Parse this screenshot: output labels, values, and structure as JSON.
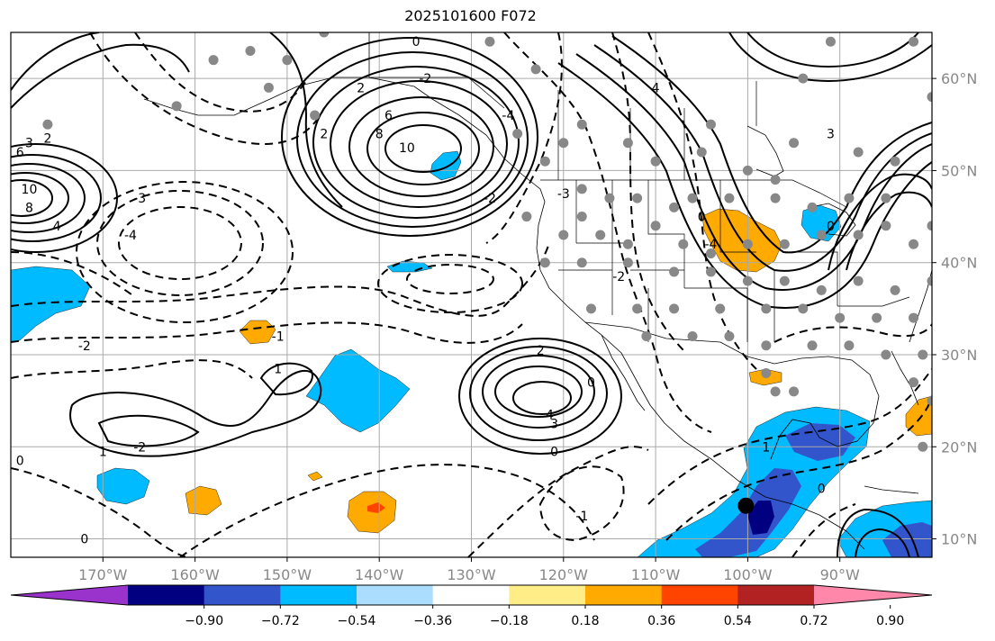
{
  "title": "2025101600 F072",
  "map": {
    "lon_range": [
      -180,
      -80
    ],
    "lat_range": [
      8,
      65
    ],
    "lon_ticks": [
      {
        "lon": -170,
        "label": "170°W"
      },
      {
        "lon": -160,
        "label": "160°W"
      },
      {
        "lon": -150,
        "label": "150°W"
      },
      {
        "lon": -140,
        "label": "140°W"
      },
      {
        "lon": -130,
        "label": "130°W"
      },
      {
        "lon": -120,
        "label": "120°W"
      },
      {
        "lon": -110,
        "label": "110°W"
      },
      {
        "lon": -100,
        "label": "100°W"
      },
      {
        "lon": -90,
        "label": "90°W"
      }
    ],
    "lat_ticks": [
      {
        "lat": 10,
        "label": "10°N"
      },
      {
        "lat": 20,
        "label": "20°N"
      },
      {
        "lat": 30,
        "label": "30°N"
      },
      {
        "lat": 40,
        "label": "40°N"
      },
      {
        "lat": 50,
        "label": "50°N"
      },
      {
        "lat": 60,
        "label": "60°N"
      }
    ],
    "grid": true
  },
  "colorbar": {
    "colors": [
      "#9933cc",
      "#000080",
      "#3355cc",
      "#00bbff",
      "#aaddff",
      "#ffffff",
      "#ffee88",
      "#ffaa00",
      "#ff4400",
      "#b22222",
      "#ff88aa"
    ],
    "labels": [
      "−0.90",
      "−0.72",
      "−0.54",
      "−0.36",
      "−0.18",
      "0.18",
      "0.36",
      "0.54",
      "0.72",
      "0.90"
    ],
    "extend": "both"
  },
  "contour_labels": [
    {
      "text": "2",
      "lon": -142,
      "lat": 59
    },
    {
      "text": "0",
      "lon": -136,
      "lat": 64
    },
    {
      "text": "-2",
      "lon": -135,
      "lat": 60
    },
    {
      "text": "6",
      "lon": -139,
      "lat": 56
    },
    {
      "text": "8",
      "lon": -140,
      "lat": 54
    },
    {
      "text": "10",
      "lon": -137,
      "lat": 52.5
    },
    {
      "text": "2",
      "lon": -146,
      "lat": 54
    },
    {
      "text": "-4",
      "lon": -126,
      "lat": 56
    },
    {
      "text": "-2",
      "lon": -128,
      "lat": 47
    },
    {
      "text": "4",
      "lon": -110,
      "lat": 59
    },
    {
      "text": "0",
      "lon": -105,
      "lat": 45
    },
    {
      "text": "-4",
      "lon": -104,
      "lat": 42
    },
    {
      "text": "3",
      "lon": -91,
      "lat": 54
    },
    {
      "text": "6",
      "lon": -179,
      "lat": 52
    },
    {
      "text": "10",
      "lon": -178,
      "lat": 48
    },
    {
      "text": "8",
      "lon": -178,
      "lat": 46
    },
    {
      "text": "4",
      "lon": -175,
      "lat": 44
    },
    {
      "text": "3",
      "lon": -178,
      "lat": 53
    },
    {
      "text": "2",
      "lon": -176,
      "lat": 53.5
    },
    {
      "text": "-3",
      "lon": -166,
      "lat": 47
    },
    {
      "text": "-4",
      "lon": -167,
      "lat": 43
    },
    {
      "text": "-2",
      "lon": -172,
      "lat": 31
    },
    {
      "text": "-1",
      "lon": -151,
      "lat": 32
    },
    {
      "text": "1",
      "lon": -151,
      "lat": 28.5
    },
    {
      "text": "-2",
      "lon": -166,
      "lat": 20
    },
    {
      "text": "1",
      "lon": -170,
      "lat": 19.5
    },
    {
      "text": "0",
      "lon": -179,
      "lat": 18.5
    },
    {
      "text": "0",
      "lon": -172,
      "lat": 10
    },
    {
      "text": "2",
      "lon": -122.5,
      "lat": 30.5
    },
    {
      "text": "4",
      "lon": -121.5,
      "lat": 23.5
    },
    {
      "text": "3",
      "lon": -121,
      "lat": 22.5
    },
    {
      "text": "0",
      "lon": -117,
      "lat": 27
    },
    {
      "text": "0",
      "lon": -121,
      "lat": 19.5
    },
    {
      "text": "-1",
      "lon": -118,
      "lat": 12.5
    },
    {
      "text": "-2",
      "lon": -114,
      "lat": 38.5
    },
    {
      "text": "-3",
      "lon": -120,
      "lat": 47.5
    },
    {
      "text": "0",
      "lon": -92,
      "lat": 15.5
    },
    {
      "text": "1",
      "lon": -98,
      "lat": 20
    },
    {
      "text": "0",
      "lon": -91,
      "lat": 44
    }
  ],
  "station_markers": {
    "color": "#888888"
  },
  "highlight_marker": {
    "lon": -100.2,
    "lat": 13.6,
    "color": "#000000"
  }
}
